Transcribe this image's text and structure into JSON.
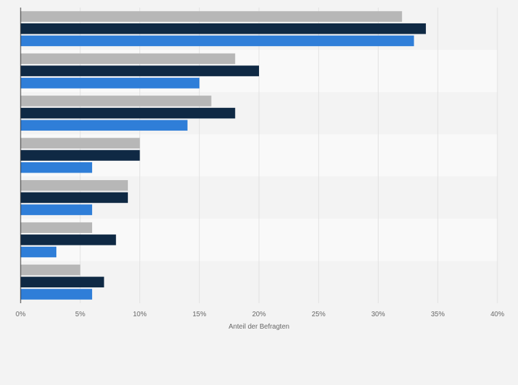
{
  "chart_data": {
    "type": "bar",
    "orientation": "horizontal",
    "categories": [
      "",
      "",
      "",
      "",
      "",
      "",
      ""
    ],
    "series": [
      {
        "color": "#b7b7b7",
        "values": [
          32,
          18,
          16,
          10,
          9,
          6,
          5
        ]
      },
      {
        "color": "#0f2944",
        "values": [
          34,
          20,
          18,
          10,
          9,
          8,
          7
        ]
      },
      {
        "color": "#2f7ed8",
        "values": [
          33,
          15,
          14,
          6,
          6,
          3,
          6
        ]
      }
    ],
    "xlabel": "Anteil der Befragten",
    "ylabel": "",
    "xlim": [
      0,
      40
    ],
    "x_ticks": [
      0,
      5,
      10,
      15,
      20,
      25,
      30,
      35,
      40
    ],
    "x_tick_labels": [
      "0%",
      "5%",
      "10%",
      "15%",
      "20%",
      "25%",
      "30%",
      "35%",
      "40%"
    ],
    "grid": true,
    "legend": "none"
  }
}
